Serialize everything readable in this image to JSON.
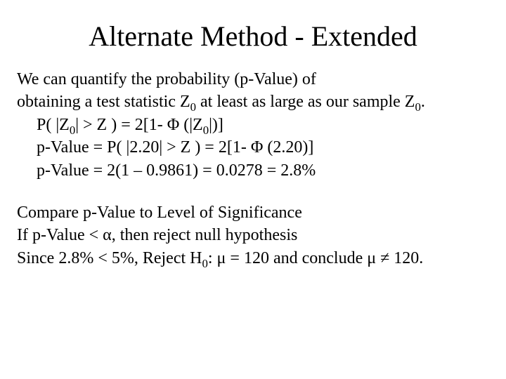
{
  "title": "Alternate Method - Extended",
  "p1_l1": "We can quantify the probability (p-Value) of",
  "p1_l2a": "obtaining a test statistic Z",
  "p1_l2b": " at least as large as our sample Z",
  "p1_l2c": ".",
  "eq1a": "P( |Z",
  "eq1b": "| > Z ) = 2[1- Φ (|Z",
  "eq1c": "|)]",
  "eq2": "p-Value = P( |2.20| > Z ) = 2[1- Φ (2.20)]",
  "eq3": "p-Value = 2(1 – 0.9861) = 0.0278 = 2.8%",
  "p2_l1": "Compare p-Value to Level of Significance",
  "p2_l2": "If p-Value < α, then reject null hypothesis",
  "p2_l3a": "Since 2.8% < 5%, Reject H",
  "p2_l3b": ": μ = 120 and conclude μ ≠ 120.",
  "sub0": "0"
}
